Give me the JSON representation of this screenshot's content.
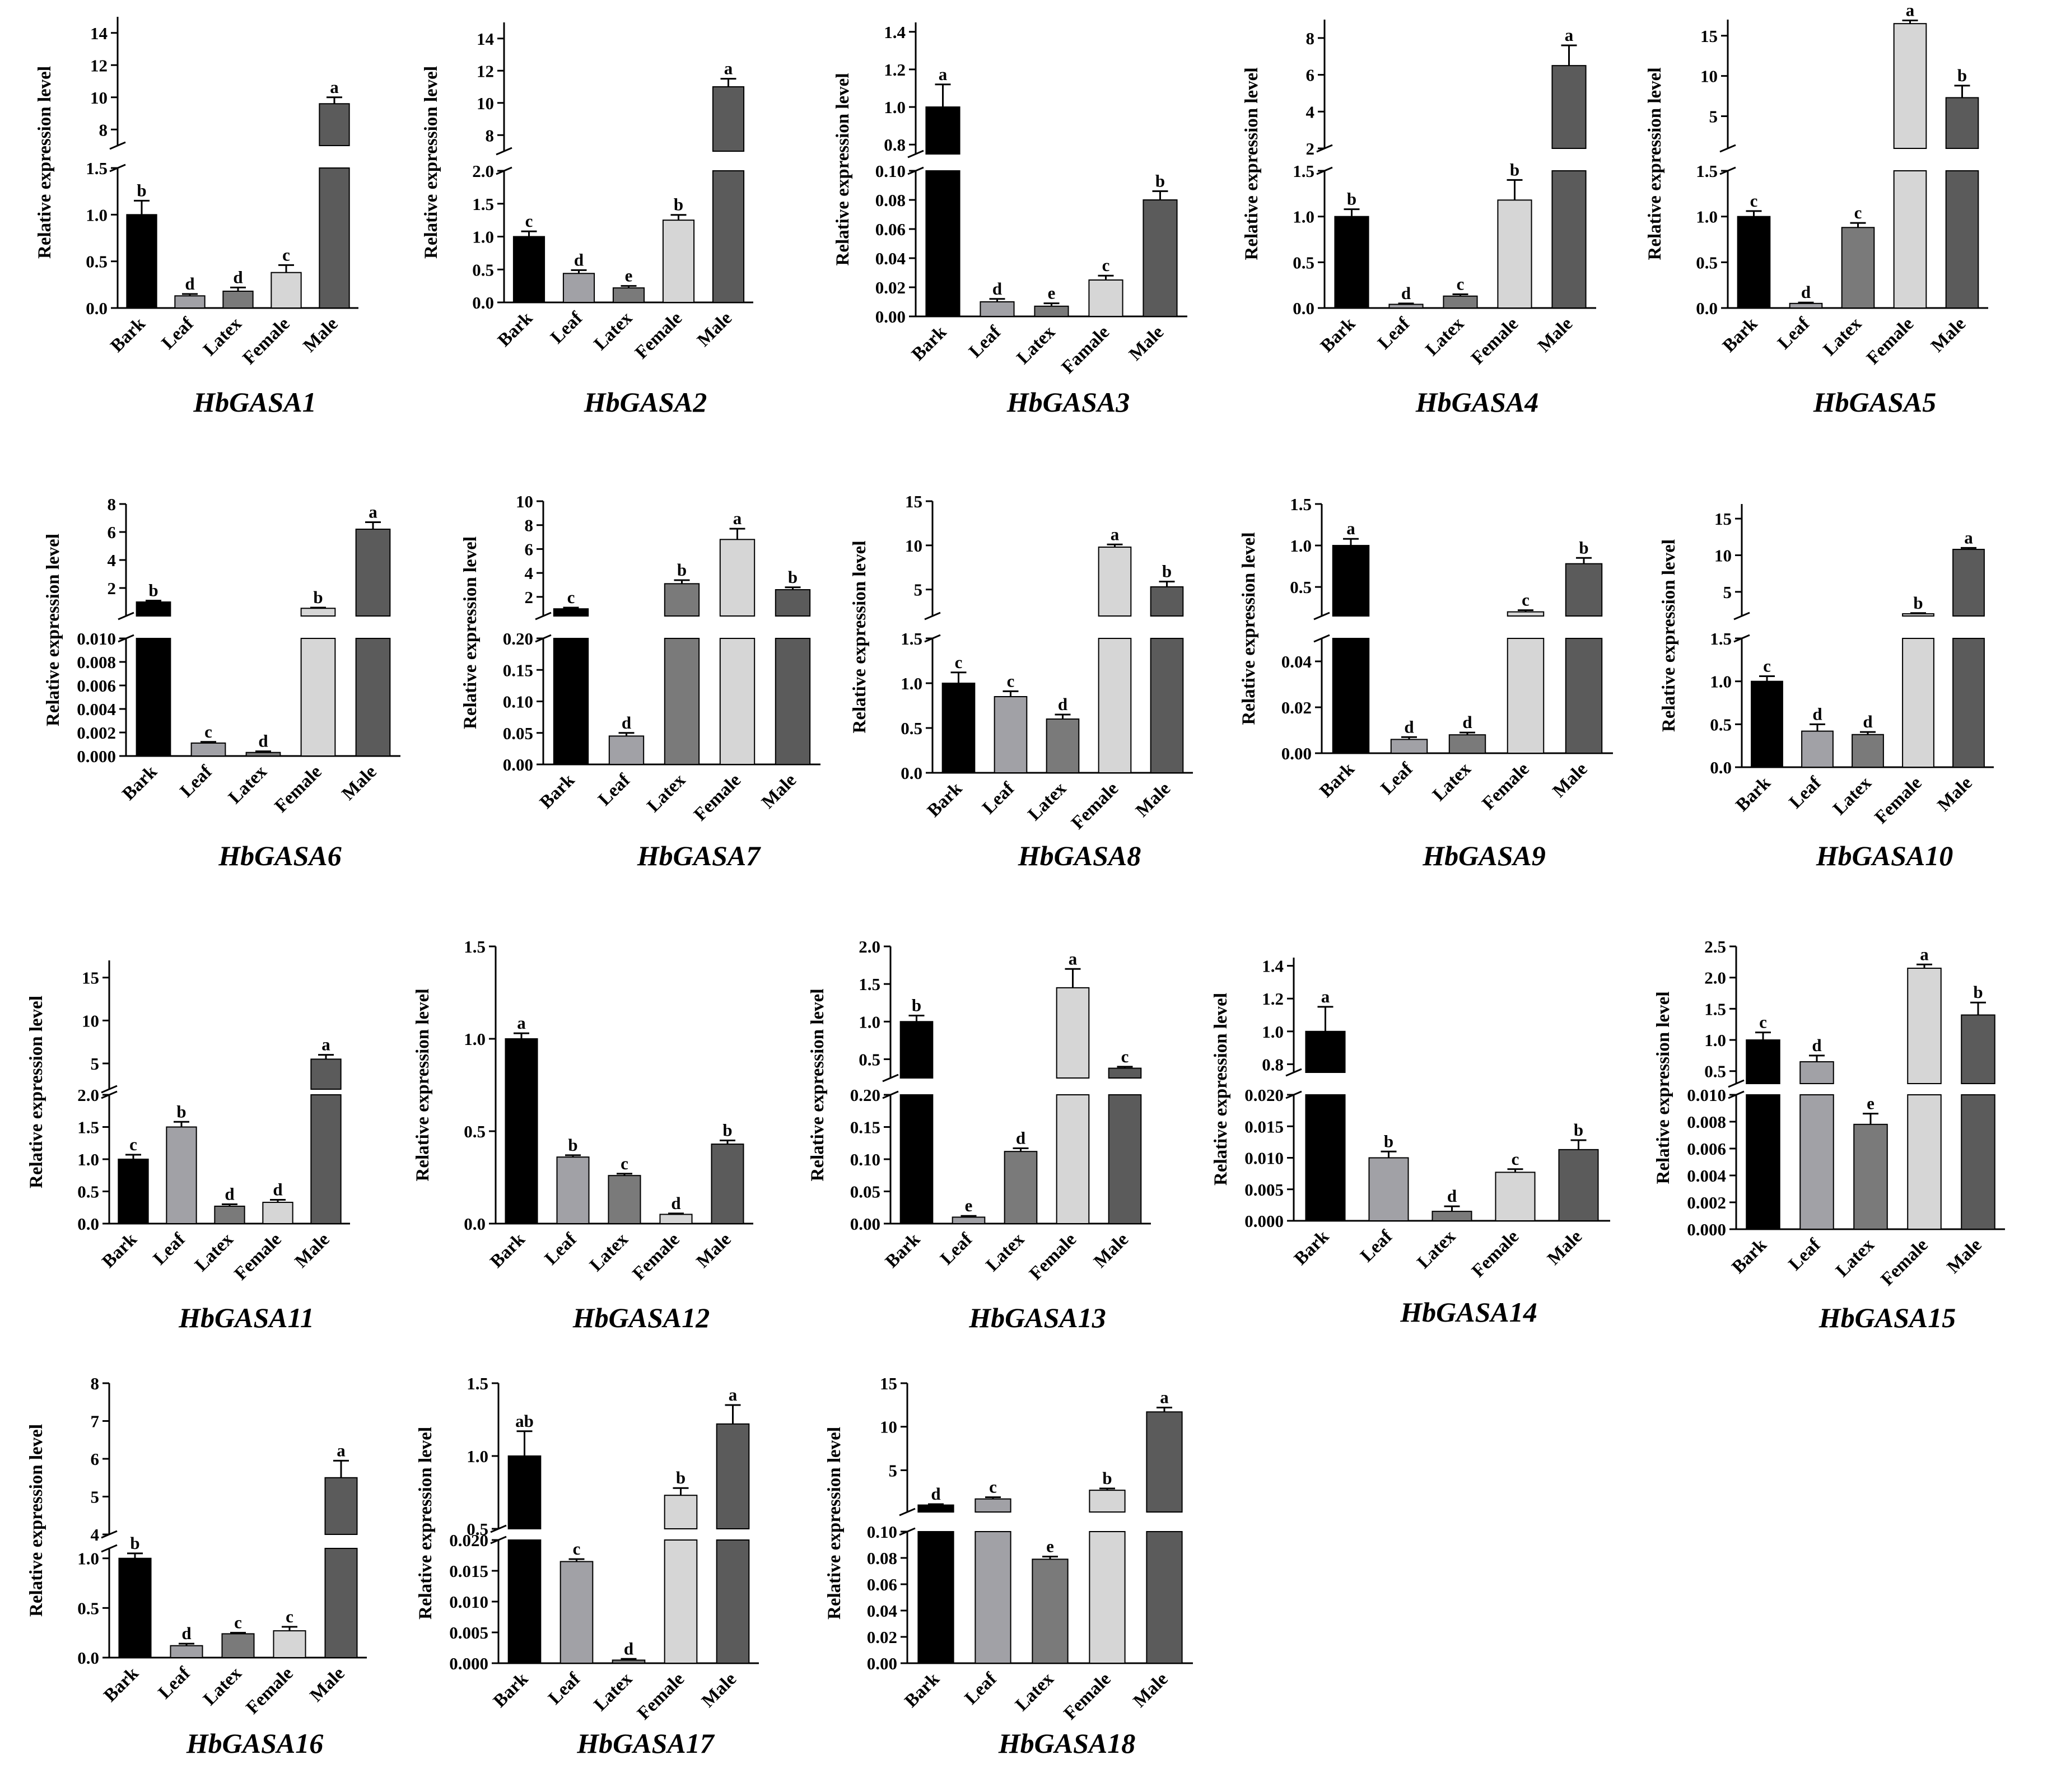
{
  "figure": {
    "ylabel": "Relative expression level",
    "colors": [
      "#000000",
      "#a1a1a6",
      "#7a7a7a",
      "#d6d6d6",
      "#5b5b5b"
    ],
    "axis_color": "#000000"
  },
  "chart_data": [
    {
      "type": "bar",
      "title": "HbGASA1",
      "ylabel": "Relative expression level",
      "categories": [
        "Bark",
        "Leaf",
        "Latex",
        "Female",
        "Male"
      ],
      "values": [
        1.0,
        0.13,
        0.18,
        0.38,
        9.6
      ],
      "errors": [
        0.15,
        0.02,
        0.04,
        0.08,
        0.4
      ],
      "letters": [
        "b",
        "d",
        "d",
        "c",
        "a"
      ],
      "ylim_lower": [
        0,
        1.5
      ],
      "ylim_upper": [
        7,
        15
      ],
      "ticks_lower": [
        "0.0",
        "0.5",
        "1.0",
        "1.5"
      ],
      "ticks_upper": [
        "8",
        "10",
        "12",
        "14"
      ]
    },
    {
      "type": "bar",
      "title": "HbGASA2",
      "ylabel": "Relative expression level",
      "categories": [
        "Bark",
        "Leaf",
        "Latex",
        "Female",
        "Male"
      ],
      "values": [
        1.0,
        0.44,
        0.22,
        1.25,
        11.0
      ],
      "errors": [
        0.08,
        0.05,
        0.03,
        0.08,
        0.5
      ],
      "letters": [
        "c",
        "d",
        "e",
        "b",
        "a"
      ],
      "ylim_lower": [
        0,
        2.0
      ],
      "ylim_upper": [
        7,
        15
      ],
      "ticks_lower": [
        "0.0",
        "0.5",
        "1.0",
        "1.5",
        "2.0"
      ],
      "ticks_upper": [
        "8",
        "10",
        "12",
        "14"
      ]
    },
    {
      "type": "bar",
      "title": "HbGASA3",
      "ylabel": "Relative expression level",
      "categories": [
        "Bark",
        "Leaf",
        "Latex",
        "Famale",
        "Male"
      ],
      "values": [
        1.0,
        0.01,
        0.007,
        0.025,
        0.08
      ],
      "errors": [
        0.12,
        0.002,
        0.002,
        0.003,
        0.006
      ],
      "letters": [
        "a",
        "d",
        "e",
        "c",
        "b"
      ],
      "ylim_lower": [
        0,
        0.1
      ],
      "ylim_upper": [
        0.75,
        1.45
      ],
      "ticks_lower": [
        "0.00",
        "0.02",
        "0.04",
        "0.06",
        "0.08",
        "0.10"
      ],
      "ticks_upper": [
        "0.8",
        "1.0",
        "1.2",
        "1.4"
      ]
    },
    {
      "type": "bar",
      "title": "HbGASA4",
      "ylabel": "Relative expression level",
      "categories": [
        "Bark",
        "Leaf",
        "Latex",
        "Female",
        "Male"
      ],
      "values": [
        1.0,
        0.04,
        0.13,
        1.18,
        6.5
      ],
      "errors": [
        0.08,
        0.01,
        0.02,
        0.22,
        1.1
      ],
      "letters": [
        "b",
        "d",
        "c",
        "b",
        "a"
      ],
      "ylim_lower": [
        0,
        1.5
      ],
      "ylim_upper": [
        2,
        9
      ],
      "ticks_lower": [
        "0.0",
        "0.5",
        "1.0",
        "1.5"
      ],
      "ticks_upper": [
        "2",
        "4",
        "6",
        "8"
      ]
    },
    {
      "type": "bar",
      "title": "HbGASA5",
      "ylabel": "Relative expression level",
      "categories": [
        "Bark",
        "Leaf",
        "Latex",
        "Female",
        "Male"
      ],
      "values": [
        1.0,
        0.05,
        0.88,
        16.5,
        7.3
      ],
      "errors": [
        0.06,
        0.01,
        0.05,
        0.4,
        1.5
      ],
      "letters": [
        "c",
        "d",
        "c",
        "a",
        "b"
      ],
      "ylim_lower": [
        0,
        1.5
      ],
      "ylim_upper": [
        1,
        17
      ],
      "ticks_lower": [
        "0.0",
        "0.5",
        "1.0",
        "1.5"
      ],
      "ticks_upper": [
        "5",
        "10",
        "15"
      ]
    },
    {
      "type": "bar",
      "title": "HbGASA6",
      "ylabel": "Relative expression level",
      "categories": [
        "Bark",
        "Leaf",
        "Latex",
        "Female",
        "Male"
      ],
      "values": [
        1.0,
        0.0011,
        0.0003,
        0.55,
        6.2
      ],
      "errors": [
        0.1,
        0.0001,
        0.0001,
        0.05,
        0.5
      ],
      "letters": [
        "b",
        "c",
        "d",
        "b",
        "a"
      ],
      "ylim_lower": [
        0,
        0.01
      ],
      "ylim_upper": [
        0,
        8
      ],
      "ticks_lower": [
        "0.000",
        "0.002",
        "0.004",
        "0.006",
        "0.008",
        "0.010"
      ],
      "ticks_upper": [
        "2",
        "4",
        "6",
        "8"
      ]
    },
    {
      "type": "bar",
      "title": "HbGASA7",
      "ylabel": "Relative expression level",
      "categories": [
        "Bark",
        "Leaf",
        "Latex",
        "Female",
        "Male"
      ],
      "values": [
        1.0,
        0.045,
        3.1,
        6.8,
        2.6
      ],
      "errors": [
        0.1,
        0.005,
        0.3,
        0.9,
        0.2
      ],
      "letters": [
        "c",
        "d",
        "b",
        "a",
        "b"
      ],
      "ylim_lower": [
        0,
        0.2
      ],
      "ylim_upper": [
        0.4,
        10
      ],
      "ticks_lower": [
        "0.00",
        "0.05",
        "0.10",
        "0.15",
        "0.20"
      ],
      "ticks_upper": [
        "2",
        "4",
        "6",
        "8",
        "10"
      ]
    },
    {
      "type": "bar",
      "title": "HbGASA8",
      "ylabel": "Relative expression level",
      "categories": [
        "Bark",
        "Leaf",
        "Latex",
        "Female",
        "Male"
      ],
      "values": [
        1.0,
        0.85,
        0.6,
        9.8,
        5.3
      ],
      "errors": [
        0.12,
        0.06,
        0.05,
        0.3,
        0.6
      ],
      "letters": [
        "c",
        "c",
        "d",
        "a",
        "b"
      ],
      "ylim_lower": [
        0,
        1.5
      ],
      "ylim_upper": [
        2,
        15
      ],
      "ticks_lower": [
        "0.0",
        "0.5",
        "1.0",
        "1.5"
      ],
      "ticks_upper": [
        "5",
        "10",
        "15"
      ]
    },
    {
      "type": "bar",
      "title": "HbGASA9",
      "ylabel": "Relative expression level",
      "categories": [
        "Bark",
        "Leaf",
        "Latex",
        "Female",
        "Male"
      ],
      "values": [
        1.0,
        0.006,
        0.008,
        0.2,
        0.78
      ],
      "errors": [
        0.08,
        0.001,
        0.001,
        0.02,
        0.07
      ],
      "letters": [
        "a",
        "d",
        "d",
        "c",
        "b"
      ],
      "ylim_lower": [
        0,
        0.05
      ],
      "ylim_upper": [
        0.15,
        1.5
      ],
      "ticks_lower": [
        "0.00",
        "0.02",
        "0.04"
      ],
      "ticks_upper": [
        "0.5",
        "1.0",
        "1.5"
      ]
    },
    {
      "type": "bar",
      "title": "HbGASA10",
      "ylabel": "Relative expression level",
      "categories": [
        "Bark",
        "Leaf",
        "Latex",
        "Female",
        "Male"
      ],
      "values": [
        1.0,
        0.42,
        0.38,
        2.0,
        10.8
      ],
      "errors": [
        0.06,
        0.08,
        0.03,
        0.1,
        0.2
      ],
      "letters": [
        "c",
        "d",
        "d",
        "b",
        "a"
      ],
      "ylim_lower": [
        0,
        1.5
      ],
      "ylim_upper": [
        1.7,
        17
      ],
      "ticks_lower": [
        "0.0",
        "0.5",
        "1.0",
        "1.5"
      ],
      "ticks_upper": [
        "5",
        "10",
        "15"
      ]
    },
    {
      "type": "bar",
      "title": "HbGASA11",
      "ylabel": "Relative expression level",
      "categories": [
        "Bark",
        "Leaf",
        "Latex",
        "Female",
        "Male"
      ],
      "values": [
        1.0,
        1.5,
        0.27,
        0.33,
        5.5
      ],
      "errors": [
        0.07,
        0.08,
        0.03,
        0.04,
        0.5
      ],
      "letters": [
        "c",
        "b",
        "d",
        "d",
        "a"
      ],
      "ylim_lower": [
        0,
        2.0
      ],
      "ylim_upper": [
        2,
        17
      ],
      "ticks_lower": [
        "0.0",
        "0.5",
        "1.0",
        "1.5",
        "2.0"
      ],
      "ticks_upper": [
        "5",
        "10",
        "15"
      ]
    },
    {
      "type": "bar",
      "title": "HbGASA12",
      "ylabel": "Relative expression level",
      "categories": [
        "Bark",
        "Leaf",
        "Latex",
        "Female",
        "Male"
      ],
      "values": [
        1.0,
        0.36,
        0.26,
        0.05,
        0.43
      ],
      "errors": [
        0.03,
        0.01,
        0.01,
        0.005,
        0.02
      ],
      "letters": [
        "a",
        "b",
        "c",
        "d",
        "b"
      ],
      "ylim_lower": [
        0,
        1.5
      ],
      "ylim_upper": null,
      "ticks_lower": [
        "0.0",
        "0.5",
        "1.0",
        "1.5"
      ],
      "ticks_upper": null
    },
    {
      "type": "bar",
      "title": "HbGASA13",
      "ylabel": "Relative expression level",
      "categories": [
        "Bark",
        "Leaf",
        "Latex",
        "Female",
        "Male"
      ],
      "values": [
        1.0,
        0.01,
        0.112,
        1.45,
        0.38
      ],
      "errors": [
        0.08,
        0.002,
        0.005,
        0.25,
        0.02
      ],
      "letters": [
        "b",
        "e",
        "d",
        "a",
        "c"
      ],
      "ylim_lower": [
        0,
        0.2
      ],
      "ylim_upper": [
        0.25,
        2.0
      ],
      "ticks_lower": [
        "0.00",
        "0.05",
        "0.10",
        "0.15",
        "0.20"
      ],
      "ticks_upper": [
        "0.5",
        "1.0",
        "1.5",
        "2.0"
      ]
    },
    {
      "type": "bar",
      "title": "HbGASA14",
      "ylabel": "Relative expression level",
      "categories": [
        "Bark",
        "Leaf",
        "Latex",
        "Female",
        "Male"
      ],
      "values": [
        1.0,
        0.01,
        0.0015,
        0.0077,
        0.0113
      ],
      "errors": [
        0.15,
        0.001,
        0.0008,
        0.0005,
        0.0015
      ],
      "letters": [
        "a",
        "b",
        "d",
        "c",
        "b"
      ],
      "ylim_lower": [
        0,
        0.02
      ],
      "ylim_upper": [
        0.75,
        1.45
      ],
      "ticks_lower": [
        "0.000",
        "0.005",
        "0.010",
        "0.015",
        "0.020"
      ],
      "ticks_upper": [
        "0.8",
        "1.0",
        "1.2",
        "1.4"
      ]
    },
    {
      "type": "bar",
      "title": "HbGASA15",
      "ylabel": "Relative expression level",
      "categories": [
        "Bark",
        "Leaf",
        "Latex",
        "Female",
        "Male"
      ],
      "values": [
        1.0,
        0.65,
        0.0078,
        2.15,
        1.4
      ],
      "errors": [
        0.12,
        0.1,
        0.0008,
        0.06,
        0.2
      ],
      "letters": [
        "c",
        "d",
        "e",
        "a",
        "b"
      ],
      "ylim_lower": [
        0,
        0.01
      ],
      "ylim_upper": [
        0.3,
        2.5
      ],
      "ticks_lower": [
        "0.000",
        "0.002",
        "0.004",
        "0.006",
        "0.008",
        "0.010"
      ],
      "ticks_upper": [
        "0.5",
        "1.0",
        "1.5",
        "2.0",
        "2.5"
      ]
    },
    {
      "type": "bar",
      "title": "HbGASA16",
      "ylabel": "Relative expression level",
      "categories": [
        "Bark",
        "Leaf",
        "Latex",
        "Female",
        "Male"
      ],
      "values": [
        1.0,
        0.12,
        0.24,
        0.27,
        5.5
      ],
      "errors": [
        0.05,
        0.02,
        0.01,
        0.04,
        0.45
      ],
      "letters": [
        "b",
        "d",
        "c",
        "c",
        "a"
      ],
      "ylim_lower": [
        0,
        1.1
      ],
      "ylim_upper": [
        4,
        8
      ],
      "ticks_lower": [
        "0.0",
        "0.5",
        "1.0"
      ],
      "ticks_upper": [
        "4",
        "5",
        "6",
        "7",
        "8"
      ]
    },
    {
      "type": "bar",
      "title": "HbGASA17",
      "ylabel": "Relative expression level",
      "categories": [
        "Bark",
        "Leaf",
        "Latex",
        "Female",
        "Male"
      ],
      "values": [
        1.0,
        0.0165,
        0.0005,
        0.73,
        1.22
      ],
      "errors": [
        0.17,
        0.0004,
        0.0002,
        0.05,
        0.13
      ],
      "letters": [
        "ab",
        "c",
        "d",
        "b",
        "a"
      ],
      "ylim_lower": [
        0,
        0.02
      ],
      "ylim_upper": [
        0.5,
        1.5
      ],
      "ticks_lower": [
        "0.000",
        "0.005",
        "0.010",
        "0.015",
        "0.020"
      ],
      "ticks_upper": [
        "0.5",
        "1.0",
        "1.5"
      ]
    },
    {
      "type": "bar",
      "title": "HbGASA18",
      "ylabel": "Relative expression level",
      "categories": [
        "Bark",
        "Leaf",
        "Latex",
        "Female",
        "Male"
      ],
      "values": [
        1.0,
        1.7,
        0.079,
        2.7,
        11.7
      ],
      "errors": [
        0.1,
        0.2,
        0.002,
        0.2,
        0.5
      ],
      "letters": [
        "d",
        "c",
        "e",
        "b",
        "a"
      ],
      "ylim_lower": [
        0,
        0.1
      ],
      "ylim_upper": [
        0.2,
        15
      ],
      "ticks_lower": [
        "0.00",
        "0.02",
        "0.04",
        "0.06",
        "0.08",
        "0.10"
      ],
      "ticks_upper": [
        "5",
        "10",
        "15"
      ]
    }
  ]
}
